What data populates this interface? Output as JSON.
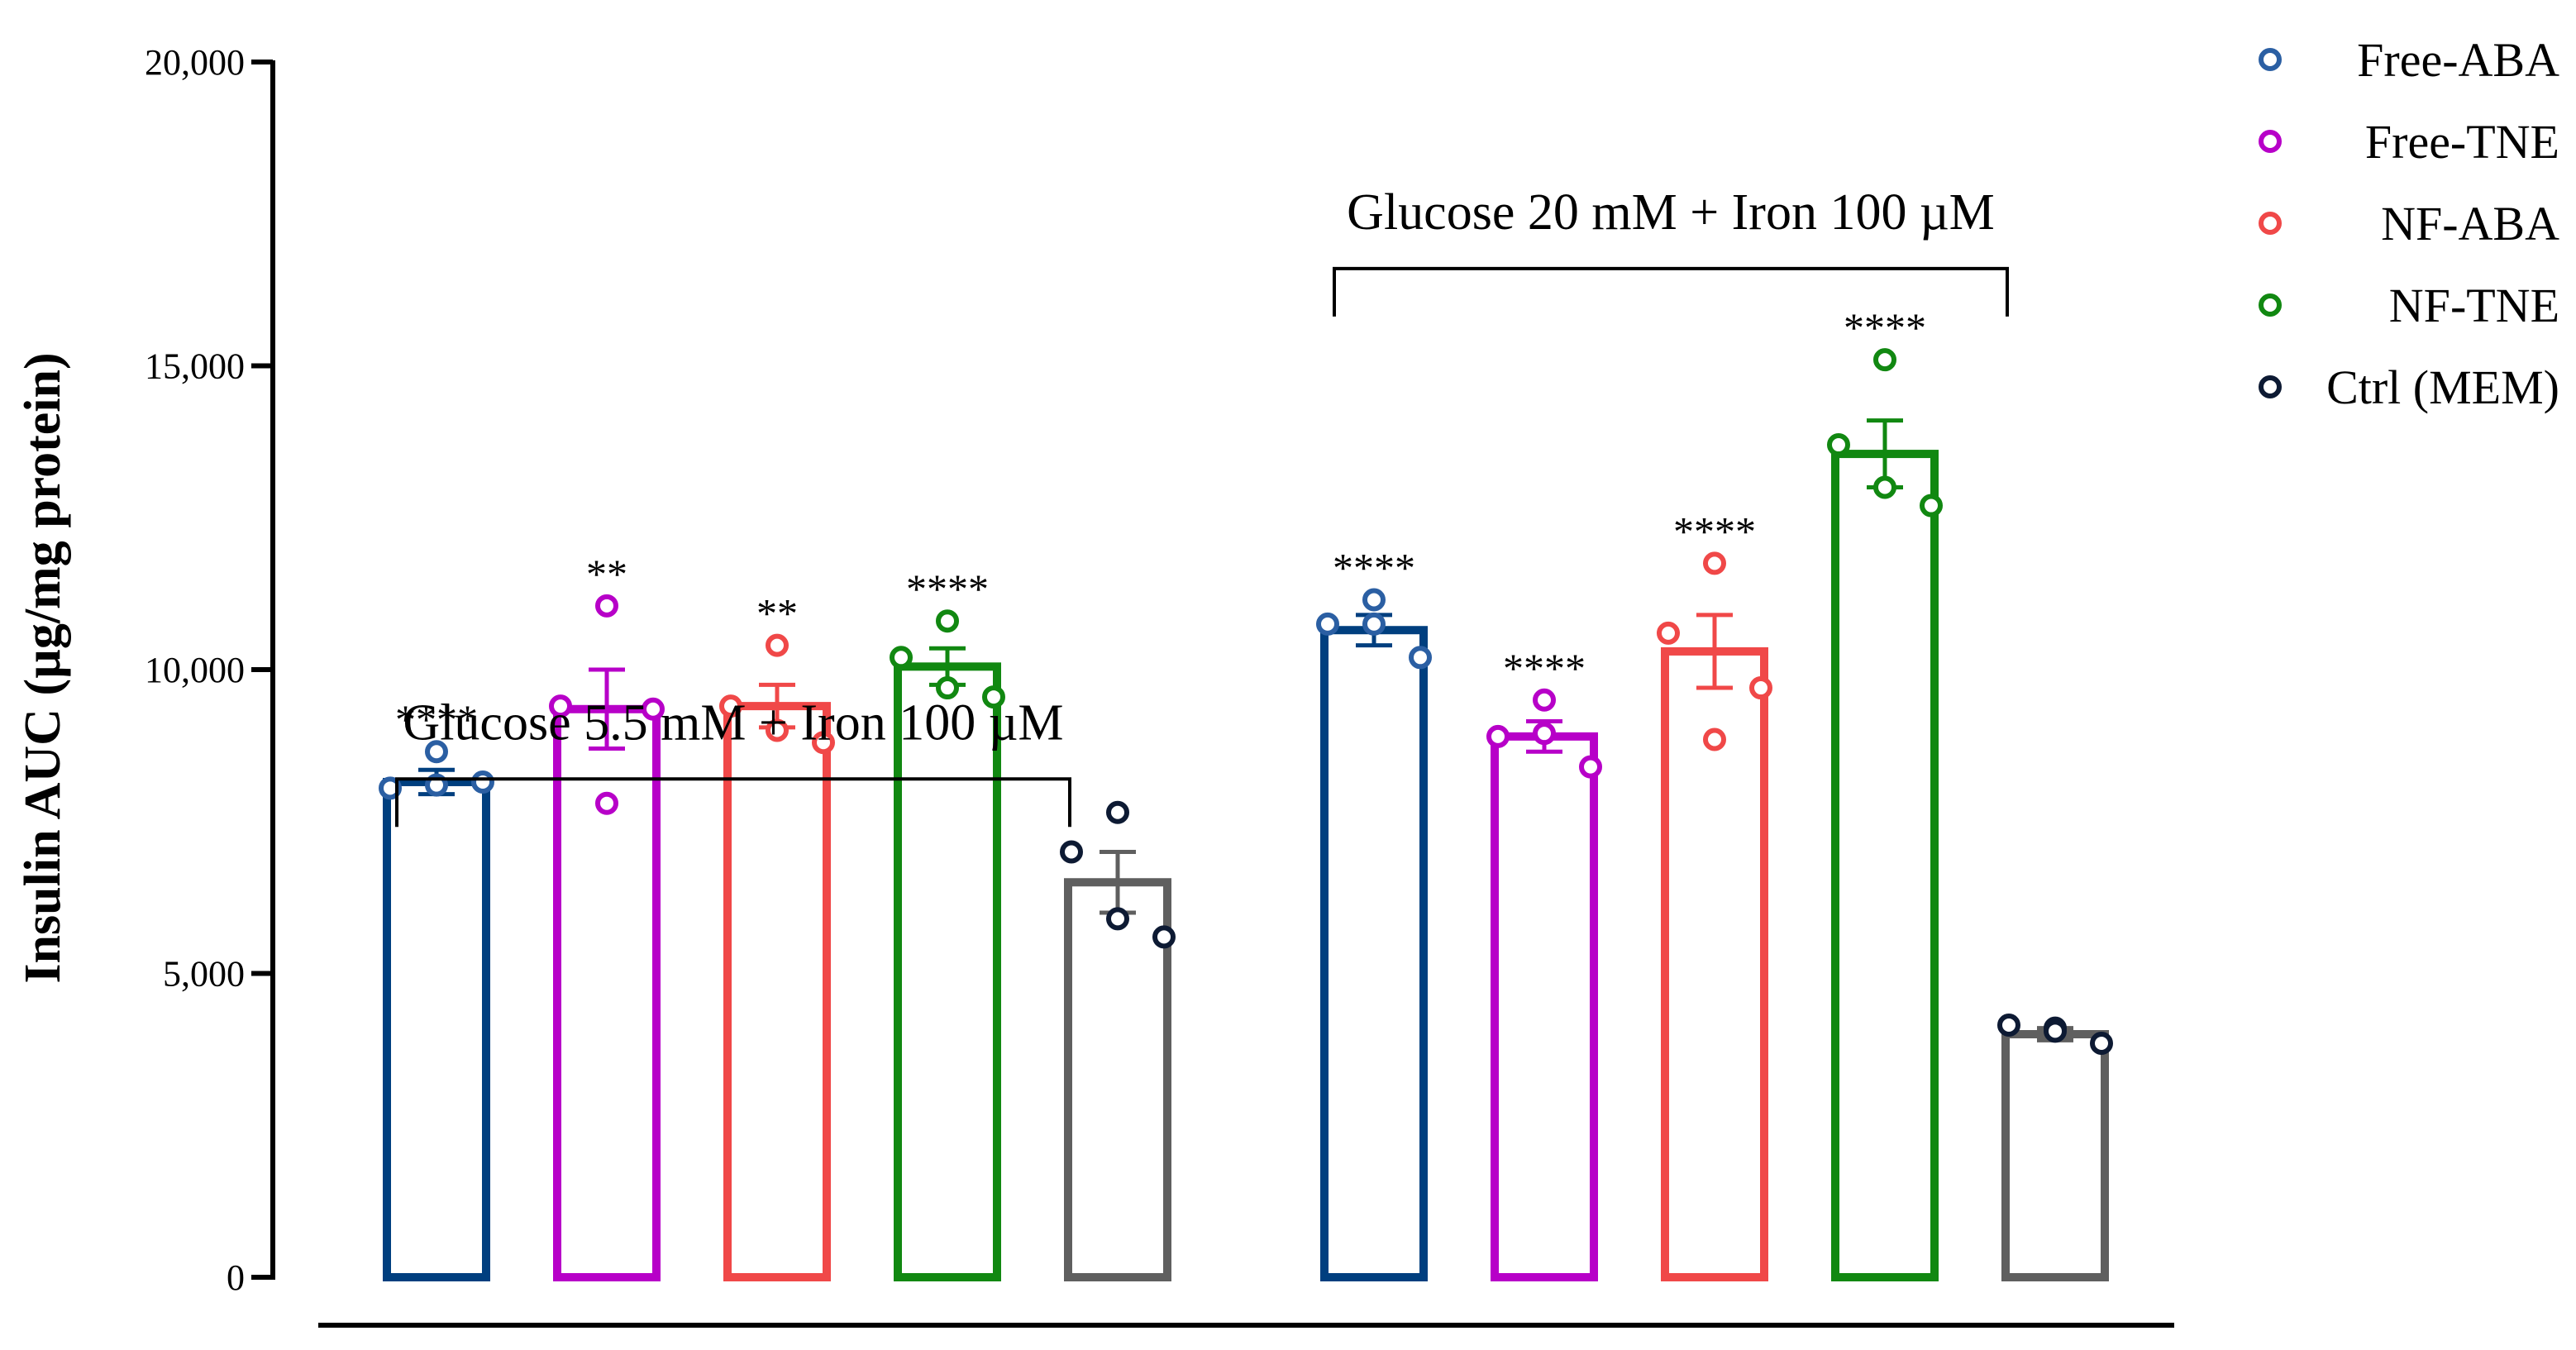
{
  "chart_data": {
    "type": "bar",
    "title": "",
    "ylabel": "Insulin AUC (µg/mg protein)",
    "xlabel": "",
    "ylim": [
      0,
      20000
    ],
    "yticks": [
      0,
      5000,
      10000,
      15000,
      20000
    ],
    "ytick_labels": [
      "0",
      "5,000",
      "10,000",
      "15,000",
      "20,000"
    ],
    "series": [
      {
        "name": "Free-ABA",
        "color": "#003f7f",
        "marker_color": "#2b5fa3"
      },
      {
        "name": "Free-TNE",
        "color": "#b700c8",
        "marker_color": "#b700c8"
      },
      {
        "name": "NF-ABA",
        "color": "#f04848",
        "marker_color": "#f04848"
      },
      {
        "name": "NF-TNE",
        "color": "#118811",
        "marker_color": "#118811"
      },
      {
        "name": "Ctrl (MEM)",
        "color": "#5f5f5f",
        "marker_color": "#0d1a33"
      }
    ],
    "groups": [
      {
        "label": "Glucose 5.5 mM + Iron 100 µM",
        "bars": [
          {
            "series": "Free-ABA",
            "mean": 8150,
            "sem": 200,
            "points": [
              8050,
              8650,
              8150,
              8100
            ],
            "significance": "****"
          },
          {
            "series": "Free-TNE",
            "mean": 9350,
            "sem": 650,
            "points": [
              9400,
              11050,
              9350,
              7800
            ],
            "significance": "**"
          },
          {
            "series": "NF-ABA",
            "mean": 9400,
            "sem": 350,
            "points": [
              9400,
              10400,
              8800,
              9000
            ],
            "significance": "**"
          },
          {
            "series": "NF-TNE",
            "mean": 10050,
            "sem": 300,
            "points": [
              10200,
              10800,
              9550,
              9700
            ],
            "significance": "****"
          },
          {
            "series": "Ctrl (MEM)",
            "mean": 6500,
            "sem": 500,
            "points": [
              7000,
              7650,
              5600,
              5900
            ],
            "significance": ""
          }
        ]
      },
      {
        "label": "Glucose 20 mM + Iron 100 µM",
        "bars": [
          {
            "series": "Free-ABA",
            "mean": 10650,
            "sem": 250,
            "points": [
              10750,
              11150,
              10200,
              10750
            ],
            "significance": "****"
          },
          {
            "series": "Free-TNE",
            "mean": 8900,
            "sem": 250,
            "points": [
              8900,
              9500,
              8400,
              8950
            ],
            "significance": "****"
          },
          {
            "series": "NF-ABA",
            "mean": 10300,
            "sem": 600,
            "points": [
              10600,
              11750,
              9700,
              8850
            ],
            "significance": "****"
          },
          {
            "series": "NF-TNE",
            "mean": 13550,
            "sem": 550,
            "points": [
              13700,
              15100,
              12700,
              13000
            ],
            "significance": "****"
          },
          {
            "series": "Ctrl (MEM)",
            "mean": 4000,
            "sem": 100,
            "points": [
              4150,
              4100,
              3850,
              4050
            ],
            "significance": ""
          }
        ]
      }
    ],
    "legend_position": "top-right"
  }
}
